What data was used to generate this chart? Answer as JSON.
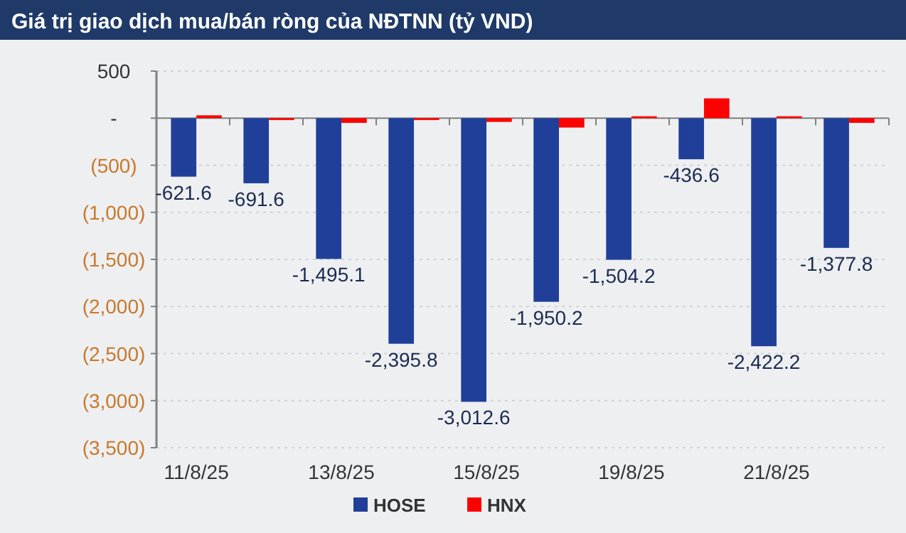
{
  "chart_data": {
    "type": "bar",
    "title": "Giá trị giao dịch mua/bán ròng của NĐTNN (tỷ VND)",
    "categories": [
      "11/8/25",
      null,
      "13/8/25",
      null,
      "15/8/25",
      null,
      "19/8/25",
      null,
      "21/8/25",
      null
    ],
    "series": [
      {
        "name": "HOSE",
        "color": "#1f3f99",
        "values": [
          -621.6,
          -691.6,
          -1495.1,
          -2395.8,
          -3012.6,
          -1950.2,
          -1504.2,
          -436.6,
          -2422.2,
          -1377.8
        ],
        "value_labels": [
          "-621.6",
          "-691.6",
          "-1,495.1",
          "-2,395.8",
          "-3,012.6",
          "-1,950.2",
          "-1,504.2",
          "-436.6",
          "-2,422.2",
          "-1,377.8"
        ]
      },
      {
        "name": "HNX",
        "color": "#ff0000",
        "values": [
          30,
          -20,
          -50,
          -20,
          -40,
          -100,
          20,
          210,
          20,
          -50
        ]
      }
    ],
    "ylim": [
      -3500,
      500
    ],
    "yticks": [
      500,
      {
        "value": 0,
        "label": "-"
      },
      {
        "value": -500,
        "label": "(500)"
      },
      {
        "value": -1000,
        "label": "(1,000)"
      },
      {
        "value": -1500,
        "label": "(1,500)"
      },
      {
        "value": -2000,
        "label": "(2,000)"
      },
      {
        "value": -2500,
        "label": "(2,500)"
      },
      {
        "value": -3000,
        "label": "(3,000)"
      },
      {
        "value": -3500,
        "label": "(3,500)"
      }
    ],
    "grid": "y",
    "legend": "bottom"
  }
}
